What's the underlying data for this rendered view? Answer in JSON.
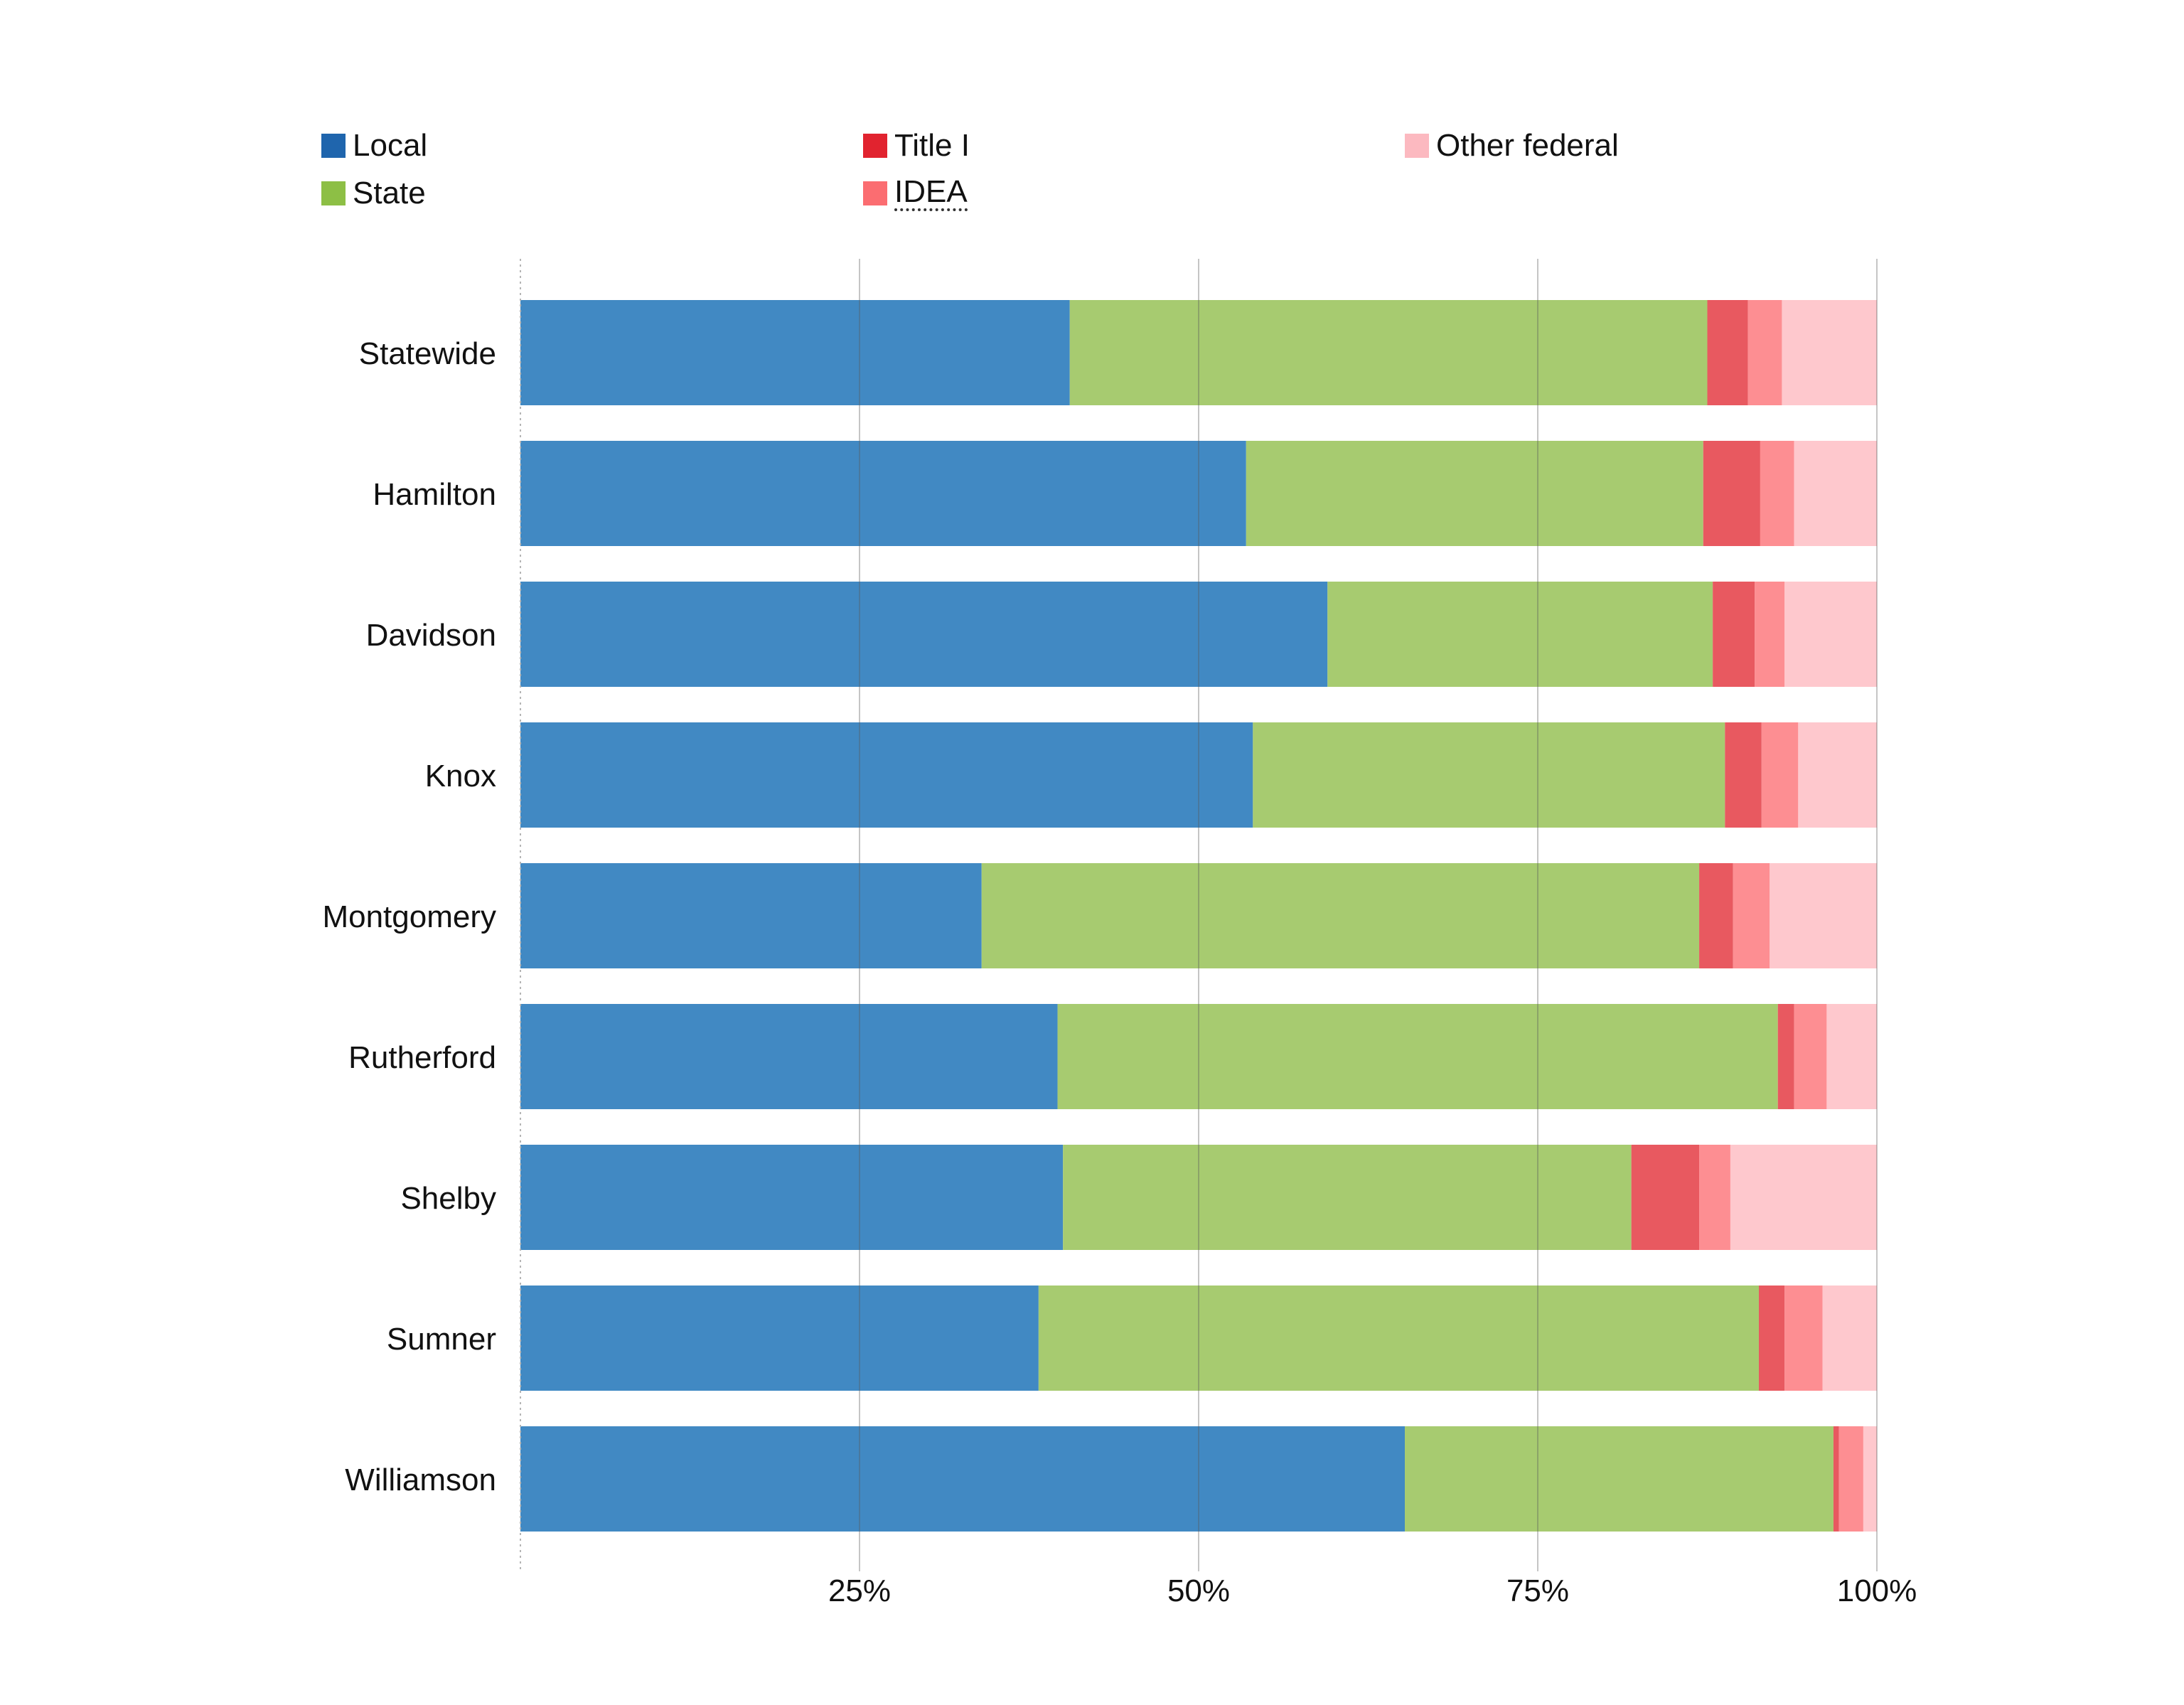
{
  "legend": {
    "items": [
      {
        "label": "Local",
        "color": "#1f65ad",
        "dotted": false
      },
      {
        "label": "State",
        "color": "#8dbf45",
        "dotted": false
      },
      {
        "label": "Title I",
        "color": "#e1232f",
        "dotted": false
      },
      {
        "label": "IDEA",
        "color": "#fb6d71",
        "dotted": true
      },
      {
        "label": "Other federal",
        "color": "#fcb9c0",
        "dotted": false
      }
    ]
  },
  "chart_data": {
    "type": "bar",
    "orientation": "horizontal",
    "stacked": true,
    "categories": [
      "Statewide",
      "Hamilton",
      "Davidson",
      "Knox",
      "Montgomery",
      "Rutherford",
      "Shelby",
      "Sumner",
      "Williamson"
    ],
    "series": [
      {
        "name": "Local",
        "color": "#4189c3",
        "values": [
          40.5,
          53.5,
          59.5,
          54.0,
          34.0,
          39.6,
          40.0,
          38.2,
          65.2
        ]
      },
      {
        "name": "State",
        "color": "#a7cb70",
        "values": [
          47.0,
          33.7,
          28.4,
          34.8,
          52.9,
          53.1,
          41.9,
          53.1,
          31.6
        ]
      },
      {
        "name": "Title I",
        "color": "#e85960",
        "values": [
          3.0,
          4.2,
          3.1,
          2.7,
          2.5,
          1.2,
          5.0,
          1.9,
          0.4
        ]
      },
      {
        "name": "IDEA",
        "color": "#fd8e92",
        "values": [
          2.5,
          2.5,
          2.2,
          2.7,
          2.7,
          2.4,
          2.3,
          2.8,
          1.8
        ]
      },
      {
        "name": "Other federal",
        "color": "#fec8cd",
        "values": [
          7.0,
          6.1,
          6.8,
          5.8,
          7.9,
          3.7,
          10.8,
          4.0,
          1.0
        ]
      }
    ],
    "xlim": [
      0,
      100
    ],
    "x_ticks": [
      {
        "value": 25,
        "label": "25%"
      },
      {
        "value": 50,
        "label": "50%"
      },
      {
        "value": 75,
        "label": "75%"
      },
      {
        "value": 100,
        "label": "100%"
      }
    ],
    "grid": true,
    "legend_position": "top"
  }
}
